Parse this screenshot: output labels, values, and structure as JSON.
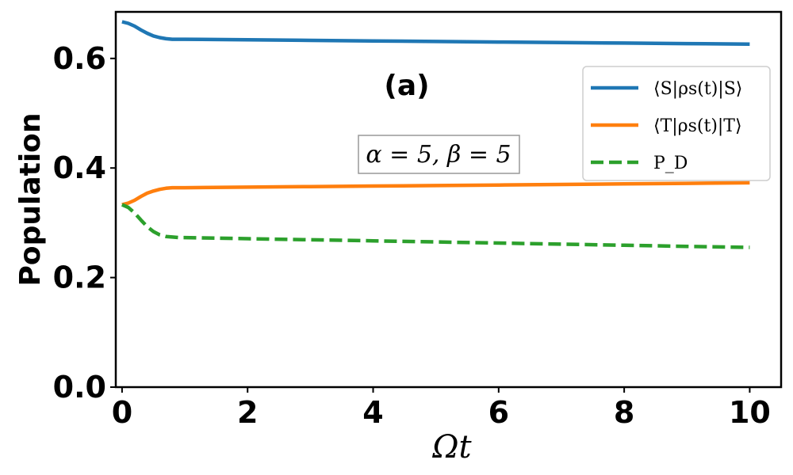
{
  "chart_data": {
    "type": "line",
    "panel_label": "(a)",
    "annotation": "α = 5, β = 5",
    "xlabel": "Ωt",
    "ylabel": "Population",
    "xlim": [
      -0.1,
      10.5
    ],
    "ylim": [
      0.0,
      0.685
    ],
    "xticks": [
      "0",
      "2",
      "4",
      "6",
      "8",
      "10"
    ],
    "yticks": [
      "0.0",
      "0.2",
      "0.4",
      "0.6"
    ],
    "grid": false,
    "legend_position": "upper-right",
    "series": [
      {
        "name": "⟨S|ρs(t)|S⟩",
        "color": "#1f77b4",
        "style": "solid",
        "x": [
          0,
          0.1,
          0.2,
          0.3,
          0.4,
          0.5,
          0.6,
          0.7,
          0.8,
          0.9,
          1.0,
          2,
          3,
          4,
          5,
          6,
          7,
          8,
          9,
          10
        ],
        "y": [
          0.667,
          0.664,
          0.659,
          0.652,
          0.646,
          0.641,
          0.638,
          0.636,
          0.635,
          0.635,
          0.635,
          0.634,
          0.633,
          0.632,
          0.631,
          0.63,
          0.629,
          0.628,
          0.627,
          0.626
        ]
      },
      {
        "name": "⟨T|ρs(t)|T⟩",
        "color": "#ff7f0e",
        "style": "solid",
        "x": [
          0,
          0.1,
          0.2,
          0.3,
          0.4,
          0.5,
          0.6,
          0.7,
          0.8,
          0.9,
          1.0,
          2,
          3,
          4,
          5,
          6,
          7,
          8,
          9,
          10
        ],
        "y": [
          0.333,
          0.336,
          0.341,
          0.348,
          0.354,
          0.358,
          0.361,
          0.363,
          0.364,
          0.364,
          0.364,
          0.365,
          0.366,
          0.367,
          0.368,
          0.369,
          0.37,
          0.371,
          0.372,
          0.373
        ]
      },
      {
        "name": "P_D",
        "color": "#2ca02c",
        "style": "dashed",
        "x": [
          0,
          0.1,
          0.2,
          0.3,
          0.4,
          0.5,
          0.6,
          0.7,
          0.8,
          0.9,
          1.0,
          2,
          3,
          4,
          5,
          6,
          7,
          8,
          9,
          10
        ],
        "y": [
          0.333,
          0.328,
          0.318,
          0.305,
          0.293,
          0.284,
          0.278,
          0.275,
          0.274,
          0.273,
          0.273,
          0.271,
          0.269,
          0.267,
          0.265,
          0.263,
          0.261,
          0.259,
          0.257,
          0.255
        ]
      }
    ]
  }
}
